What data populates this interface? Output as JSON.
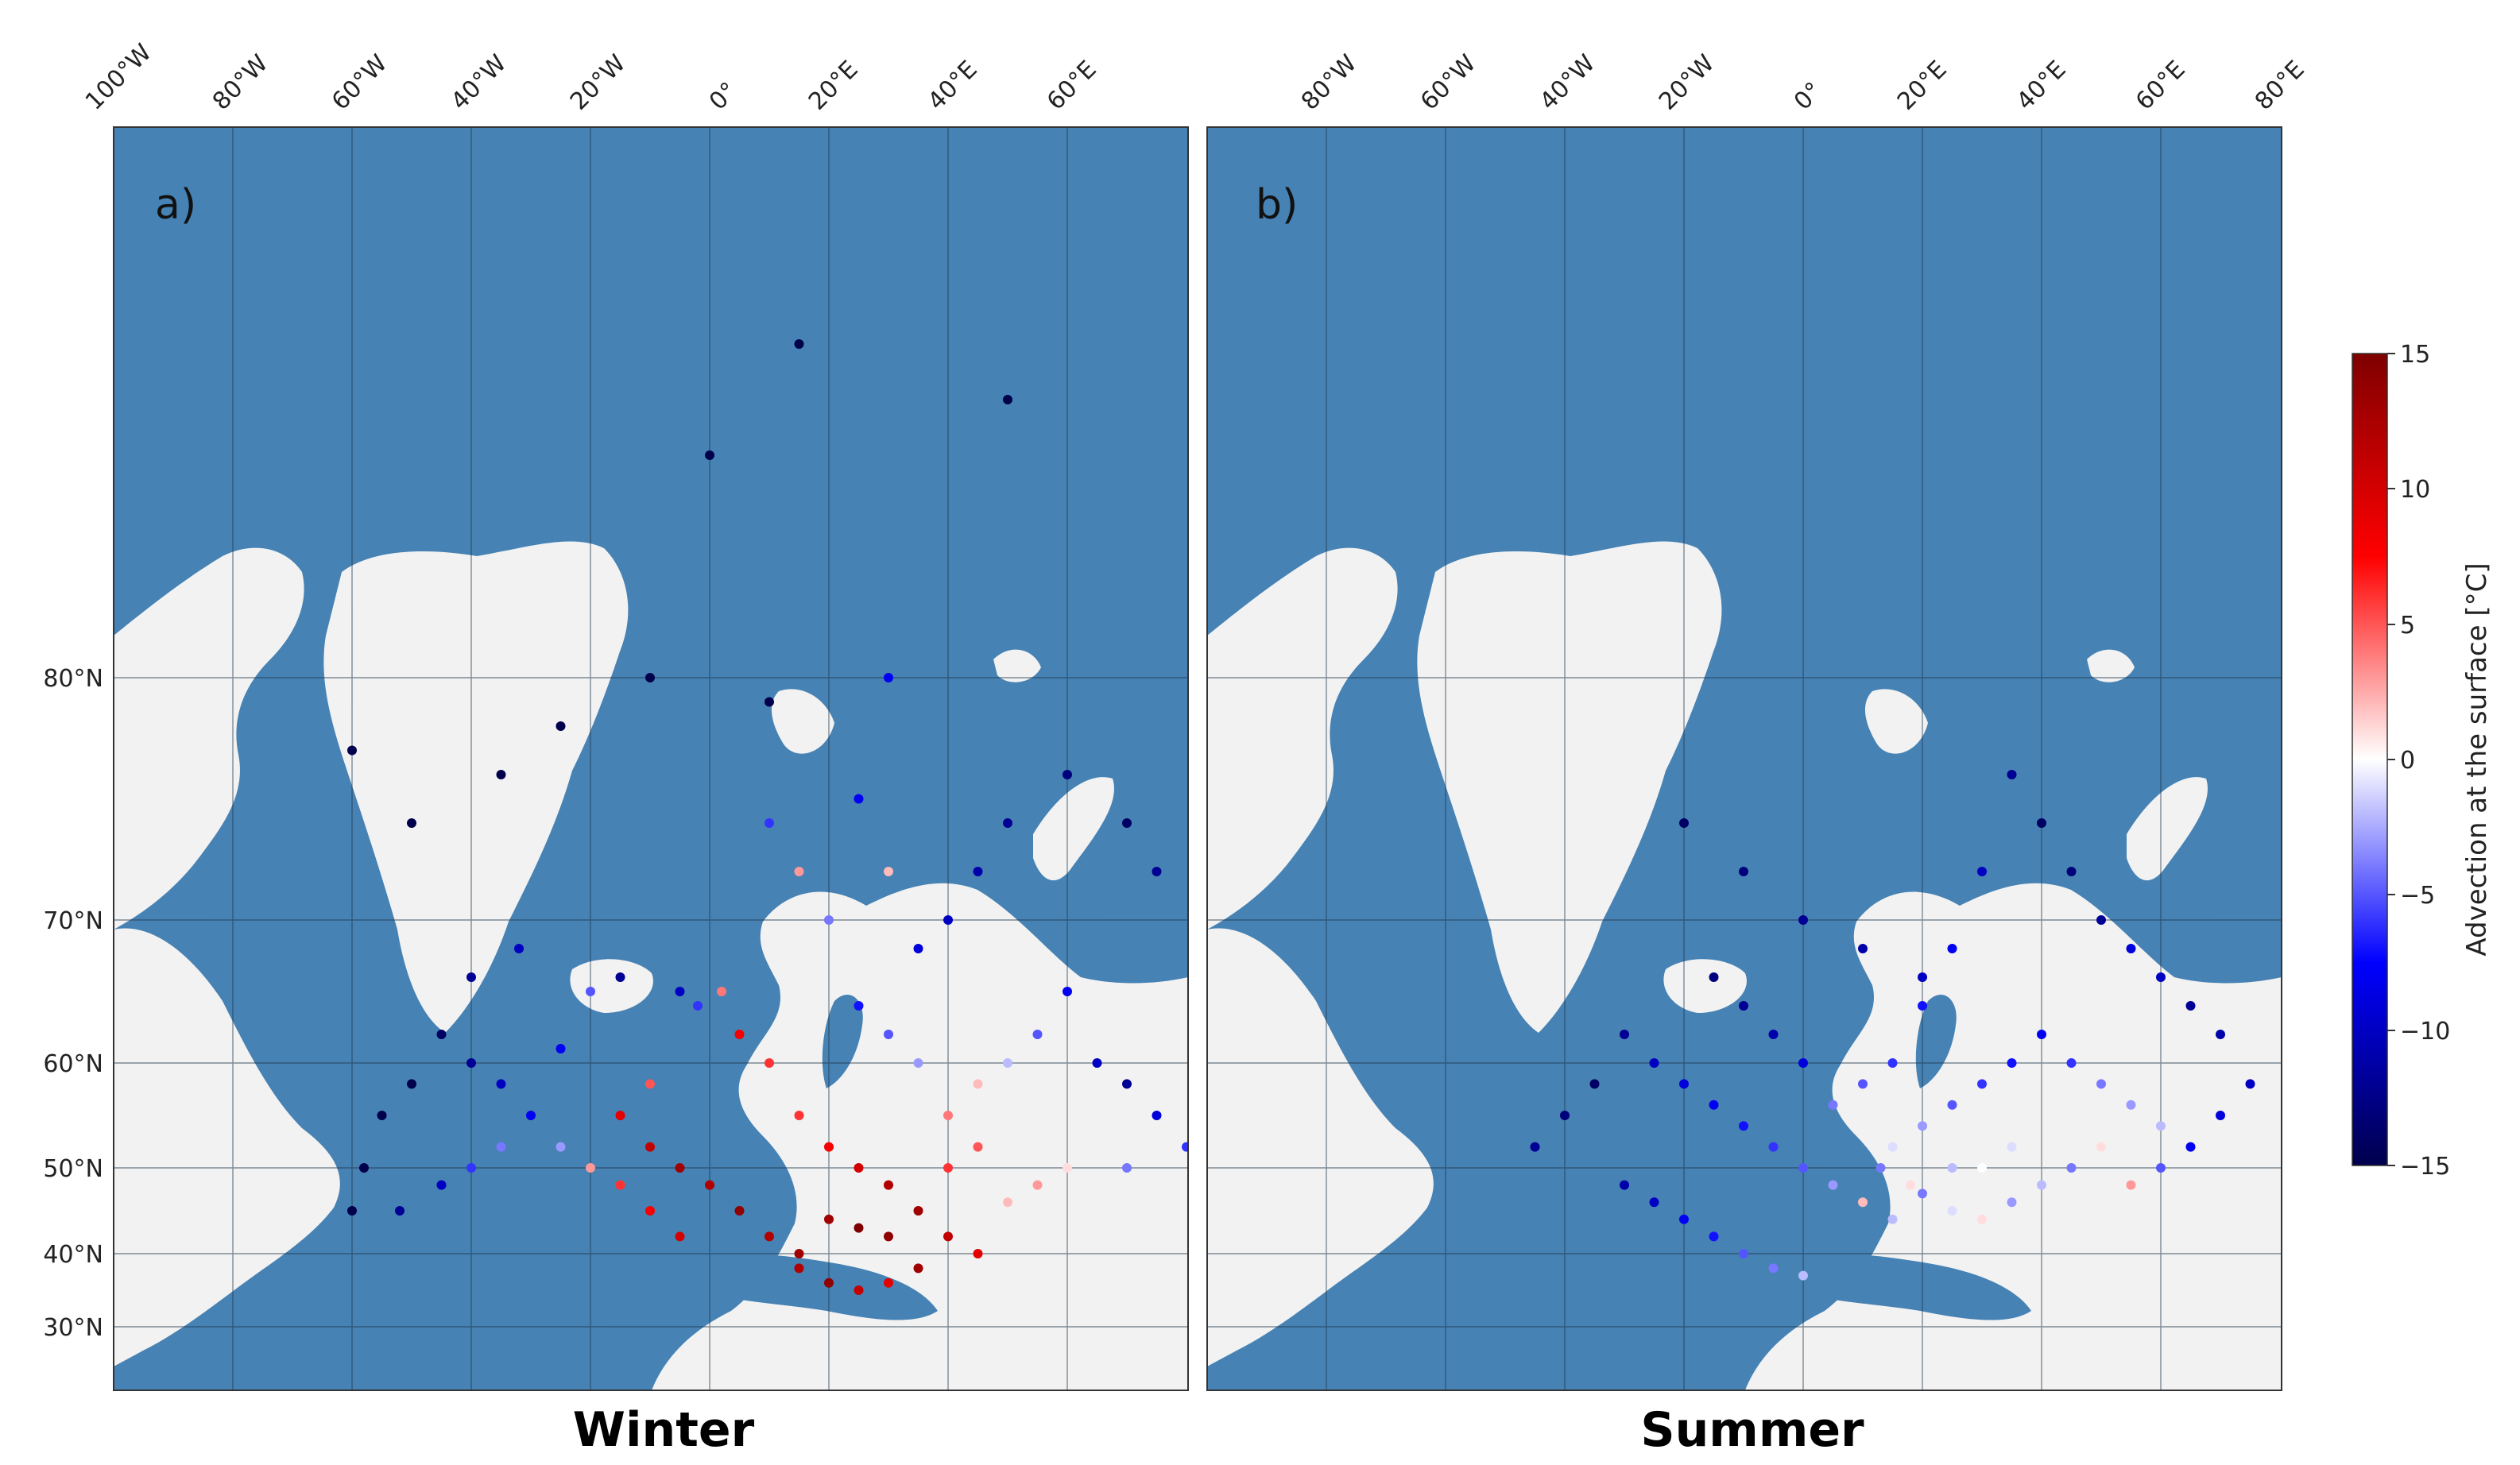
{
  "colors": {
    "ocean": "#4682b4",
    "land": "#f2f2f2",
    "grid": "#1f3448"
  },
  "colorbar": {
    "label": "Advection at the surface [°C]",
    "min": -15,
    "max": 15,
    "ticks": [
      "15",
      "10",
      "5",
      "0",
      "−5",
      "−10",
      "−15"
    ],
    "colormap": "seismic"
  },
  "panels": [
    {
      "id": "a",
      "letter": "a)",
      "title": "Winter",
      "top_ticks": [
        "100°W",
        "80°W",
        "60°W",
        "40°W",
        "20°W",
        "0°",
        "20°E",
        "40°E",
        "60°E"
      ],
      "left_ticks": [
        "80°N",
        "70°N",
        "60°N",
        "50°N",
        "40°N",
        "30°N"
      ]
    },
    {
      "id": "b",
      "letter": "b)",
      "title": "Summer",
      "top_ticks": [
        "80°W",
        "60°W",
        "40°W",
        "20°W",
        "0°",
        "20°E",
        "40°E",
        "60°E",
        "80°E"
      ],
      "left_ticks": []
    }
  ],
  "chart_data": {
    "type": "scatter",
    "description_units": "station surface temperature advection, °C",
    "series": [
      {
        "name": "Winter",
        "points_lonlat_value": [
          [
            -80,
            77,
            -15
          ],
          [
            -70,
            74,
            -15
          ],
          [
            -55,
            76,
            -15
          ],
          [
            -45,
            78,
            -15
          ],
          [
            -20,
            84,
            -15
          ],
          [
            -5,
            86,
            -15
          ],
          [
            30,
            85,
            -15
          ],
          [
            -30,
            80,
            -15
          ],
          [
            -10,
            79,
            -15
          ],
          [
            10,
            80,
            -8
          ],
          [
            -60,
            66,
            -12
          ],
          [
            -52,
            68,
            -10
          ],
          [
            -45,
            61,
            -8
          ],
          [
            -40,
            65,
            -5
          ],
          [
            -35,
            66,
            -12
          ],
          [
            -25,
            65,
            -10
          ],
          [
            -22,
            64,
            -6
          ],
          [
            -18,
            65,
            4
          ],
          [
            -15,
            62,
            8
          ],
          [
            -10,
            60,
            6
          ],
          [
            -30,
            58,
            5
          ],
          [
            -35,
            55,
            9
          ],
          [
            -30,
            52,
            11
          ],
          [
            -25,
            50,
            13
          ],
          [
            -20,
            48,
            12
          ],
          [
            -15,
            45,
            14
          ],
          [
            -10,
            42,
            12
          ],
          [
            -5,
            40,
            13
          ],
          [
            -25,
            42,
            10
          ],
          [
            -30,
            45,
            8
          ],
          [
            -35,
            48,
            6
          ],
          [
            -40,
            50,
            3
          ],
          [
            -45,
            52,
            -3
          ],
          [
            -50,
            55,
            -8
          ],
          [
            -55,
            58,
            -10
          ],
          [
            -60,
            60,
            -12
          ],
          [
            -65,
            62,
            -14
          ],
          [
            -70,
            58,
            -15
          ],
          [
            -75,
            55,
            -15
          ],
          [
            -78,
            50,
            -15
          ],
          [
            -80,
            45,
            -15
          ],
          [
            -72,
            45,
            -12
          ],
          [
            -65,
            48,
            -10
          ],
          [
            -60,
            50,
            -6
          ],
          [
            -55,
            52,
            -4
          ],
          [
            -5,
            55,
            6
          ],
          [
            0,
            52,
            8
          ],
          [
            5,
            50,
            10
          ],
          [
            10,
            48,
            12
          ],
          [
            15,
            45,
            13
          ],
          [
            20,
            42,
            11
          ],
          [
            25,
            40,
            9
          ],
          [
            10,
            42,
            14
          ],
          [
            5,
            43,
            15
          ],
          [
            0,
            44,
            13
          ],
          [
            -5,
            38,
            12
          ],
          [
            0,
            36,
            14
          ],
          [
            5,
            35,
            11
          ],
          [
            10,
            36,
            9
          ],
          [
            15,
            38,
            13
          ],
          [
            20,
            55,
            4
          ],
          [
            25,
            58,
            2
          ],
          [
            30,
            60,
            -2
          ],
          [
            35,
            62,
            -5
          ],
          [
            40,
            65,
            -8
          ],
          [
            45,
            60,
            -10
          ],
          [
            50,
            58,
            -12
          ],
          [
            55,
            55,
            -9
          ],
          [
            60,
            52,
            -6
          ],
          [
            50,
            50,
            -4
          ],
          [
            40,
            50,
            1
          ],
          [
            35,
            48,
            3
          ],
          [
            30,
            46,
            2
          ],
          [
            25,
            52,
            5
          ],
          [
            20,
            50,
            6
          ],
          [
            15,
            60,
            -3
          ],
          [
            10,
            62,
            -5
          ],
          [
            5,
            64,
            -7
          ],
          [
            15,
            68,
            -9
          ],
          [
            20,
            70,
            -10
          ],
          [
            25,
            72,
            -11
          ],
          [
            30,
            74,
            -12
          ],
          [
            40,
            76,
            -13
          ],
          [
            50,
            74,
            -14
          ],
          [
            55,
            72,
            -12
          ],
          [
            0,
            70,
            -4
          ],
          [
            -5,
            72,
            3
          ],
          [
            -10,
            74,
            -6
          ],
          [
            5,
            75,
            -8
          ],
          [
            10,
            72,
            2
          ]
        ]
      },
      {
        "name": "Summer",
        "points_lonlat_value": [
          [
            -30,
            74,
            -14
          ],
          [
            -20,
            72,
            -13
          ],
          [
            -10,
            70,
            -12
          ],
          [
            0,
            68,
            -11
          ],
          [
            10,
            66,
            -10
          ],
          [
            -40,
            62,
            -12
          ],
          [
            -35,
            60,
            -10
          ],
          [
            -30,
            58,
            -9
          ],
          [
            -25,
            56,
            -8
          ],
          [
            -20,
            54,
            -7
          ],
          [
            -15,
            52,
            -6
          ],
          [
            -10,
            50,
            -5
          ],
          [
            -5,
            48,
            -3
          ],
          [
            0,
            46,
            2
          ],
          [
            5,
            44,
            -2
          ],
          [
            10,
            47,
            -4
          ],
          [
            15,
            45,
            -1
          ],
          [
            20,
            44,
            1
          ],
          [
            25,
            46,
            -3
          ],
          [
            30,
            48,
            -2
          ],
          [
            35,
            50,
            -4
          ],
          [
            40,
            52,
            1
          ],
          [
            45,
            48,
            3
          ],
          [
            50,
            50,
            -5
          ],
          [
            55,
            52,
            -8
          ],
          [
            60,
            55,
            -9
          ],
          [
            65,
            58,
            -10
          ],
          [
            60,
            62,
            -11
          ],
          [
            55,
            64,
            -12
          ],
          [
            50,
            66,
            -10
          ],
          [
            45,
            68,
            -9
          ],
          [
            40,
            70,
            -12
          ],
          [
            35,
            72,
            -13
          ],
          [
            30,
            74,
            -14
          ],
          [
            25,
            76,
            -12
          ],
          [
            20,
            72,
            -10
          ],
          [
            15,
            68,
            -8
          ],
          [
            10,
            64,
            -7
          ],
          [
            5,
            60,
            -6
          ],
          [
            0,
            58,
            -5
          ],
          [
            -5,
            56,
            -4
          ],
          [
            -10,
            60,
            -9
          ],
          [
            -15,
            62,
            -11
          ],
          [
            -20,
            64,
            -12
          ],
          [
            -25,
            66,
            -13
          ],
          [
            -45,
            58,
            -14
          ],
          [
            -50,
            55,
            -13
          ],
          [
            -55,
            52,
            -12
          ],
          [
            -40,
            48,
            -11
          ],
          [
            -35,
            46,
            -10
          ],
          [
            -30,
            44,
            -8
          ],
          [
            -25,
            42,
            -7
          ],
          [
            -20,
            40,
            -5
          ],
          [
            -15,
            38,
            -4
          ],
          [
            -10,
            37,
            -2
          ],
          [
            5,
            52,
            -1
          ],
          [
            10,
            54,
            -3
          ],
          [
            15,
            56,
            -5
          ],
          [
            20,
            58,
            -6
          ],
          [
            25,
            60,
            -7
          ],
          [
            30,
            62,
            -8
          ],
          [
            35,
            60,
            -6
          ],
          [
            40,
            58,
            -4
          ],
          [
            45,
            56,
            -3
          ],
          [
            50,
            54,
            -2
          ],
          [
            20,
            50,
            0
          ],
          [
            25,
            52,
            -1
          ],
          [
            15,
            50,
            -2
          ],
          [
            8,
            48,
            1
          ],
          [
            3,
            50,
            -4
          ]
        ]
      }
    ],
    "colorbar_range": [
      -15,
      15
    ],
    "projection": "polar stereographic"
  }
}
